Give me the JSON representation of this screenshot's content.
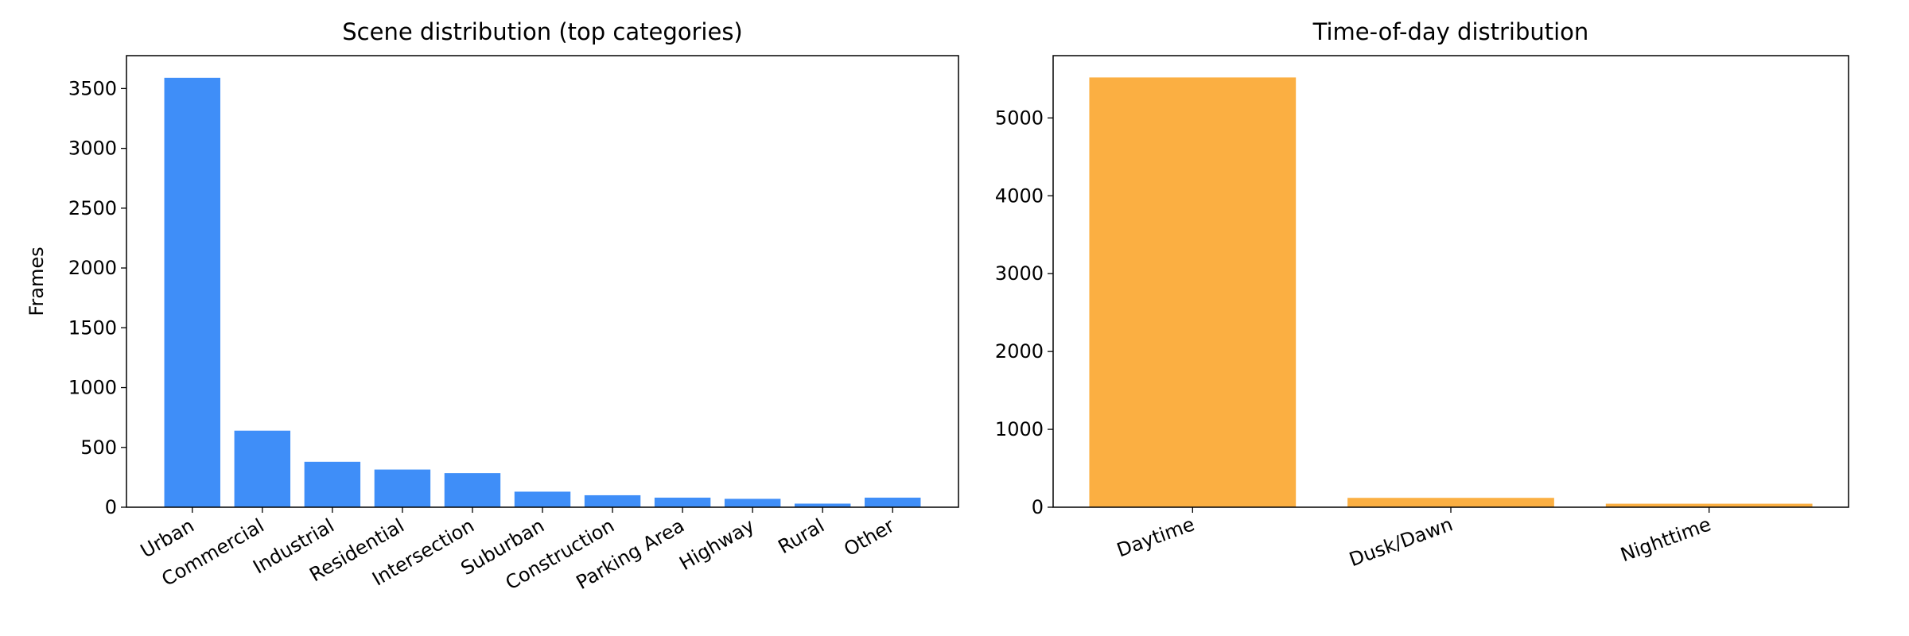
{
  "chart_data": [
    {
      "type": "bar",
      "title": "Scene distribution (top categories)",
      "y_label": "Frames",
      "categories": [
        "Urban",
        "Commercial",
        "Industrial",
        "Residential",
        "Intersection",
        "Suburban",
        "Construction",
        "Parking Area",
        "Highway",
        "Rural",
        "Other"
      ],
      "values": [
        3590,
        640,
        380,
        315,
        285,
        130,
        100,
        80,
        70,
        30,
        80
      ],
      "color": "#3f8ef8",
      "ylim": [
        0,
        3775
      ],
      "yticks": [
        0,
        500,
        1000,
        1500,
        2000,
        2500,
        3000,
        3500
      ]
    },
    {
      "type": "bar",
      "title": "Time-of-day distribution",
      "categories": [
        "Daytime",
        "Dusk/Dawn",
        "Nighttime"
      ],
      "values": [
        5520,
        120,
        45
      ],
      "color": "#fbaf42",
      "ylim": [
        0,
        5800
      ],
      "yticks": [
        0,
        1000,
        2000,
        3000,
        4000,
        5000
      ]
    }
  ]
}
